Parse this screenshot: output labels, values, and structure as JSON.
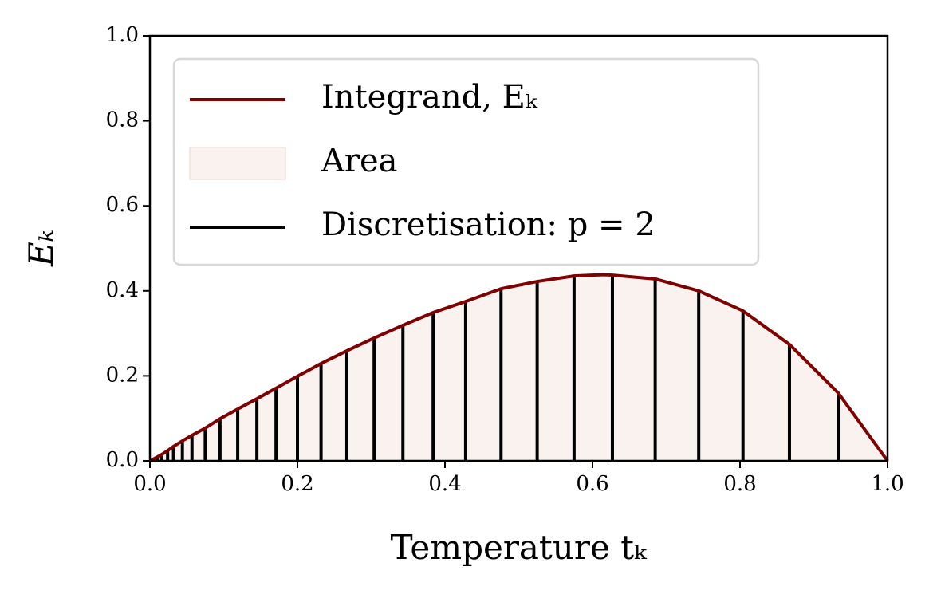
{
  "chart_data": {
    "type": "line",
    "xlabel": "Temperature tₖ",
    "ylabel": "Eₖ",
    "xlim": [
      0,
      1
    ],
    "ylim": [
      0,
      1
    ],
    "xticks": [
      {
        "value": 0,
        "label": "0.0"
      },
      {
        "value": 0.2,
        "label": "0.2"
      },
      {
        "value": 0.4,
        "label": "0.4"
      },
      {
        "value": 0.6,
        "label": "0.6"
      },
      {
        "value": 0.8,
        "label": "0.8"
      },
      {
        "value": 1,
        "label": "1.0"
      }
    ],
    "yticks": [
      {
        "value": 0,
        "label": "0.0"
      },
      {
        "value": 0.2,
        "label": "0.2"
      },
      {
        "value": 0.4,
        "label": "0.4"
      },
      {
        "value": 0.6,
        "label": "0.6"
      },
      {
        "value": 0.8,
        "label": "0.8"
      },
      {
        "value": 1,
        "label": "1.0"
      }
    ],
    "legend": "upper left",
    "series": [
      {
        "name": "Integrand, Eₖ",
        "color": "#7f0000",
        "kind": "curve",
        "x": [
          0,
          0.01,
          0.016,
          0.024,
          0.032,
          0.044,
          0.057,
          0.075,
          0.095,
          0.119,
          0.145,
          0.171,
          0.2,
          0.232,
          0.267,
          0.304,
          0.343,
          0.384,
          0.428,
          0.476,
          0.525,
          0.575,
          0.615,
          0.627,
          0.685,
          0.744,
          0.804,
          0.867,
          0.933,
          1
        ],
        "values": [
          0,
          0.009,
          0.015,
          0.024,
          0.034,
          0.047,
          0.06,
          0.077,
          0.099,
          0.122,
          0.146,
          0.171,
          0.199,
          0.229,
          0.259,
          0.289,
          0.319,
          0.349,
          0.375,
          0.405,
          0.422,
          0.435,
          0.438,
          0.437,
          0.428,
          0.4,
          0.353,
          0.274,
          0.16,
          0
        ]
      },
      {
        "name": "Area",
        "color": "#f9f2ee",
        "kind": "area"
      },
      {
        "name": "Discretisation: p = 2",
        "color": "#000000",
        "kind": "stems",
        "x": [
          0.01,
          0.016,
          0.024,
          0.032,
          0.044,
          0.057,
          0.075,
          0.095,
          0.119,
          0.145,
          0.171,
          0.2,
          0.232,
          0.267,
          0.304,
          0.343,
          0.384,
          0.428,
          0.476,
          0.525,
          0.575,
          0.627,
          0.685,
          0.744,
          0.804,
          0.867,
          0.933
        ],
        "values": [
          0.009,
          0.015,
          0.024,
          0.034,
          0.047,
          0.06,
          0.077,
          0.099,
          0.122,
          0.146,
          0.171,
          0.199,
          0.229,
          0.259,
          0.289,
          0.319,
          0.349,
          0.375,
          0.405,
          0.422,
          0.437,
          0.437,
          0.428,
          0.4,
          0.353,
          0.274,
          0.16
        ]
      }
    ]
  }
}
